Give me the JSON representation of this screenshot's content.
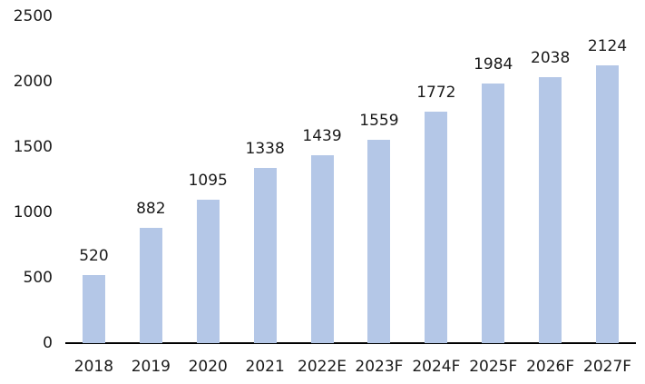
{
  "chart_data": {
    "type": "bar",
    "categories": [
      "2018",
      "2019",
      "2020",
      "2021",
      "2022E",
      "2023F",
      "2024F",
      "2025F",
      "2026F",
      "2027F"
    ],
    "values": [
      520,
      882,
      1095,
      1338,
      1439,
      1559,
      1772,
      1984,
      2038,
      2124
    ],
    "title": "",
    "xlabel": "",
    "ylabel": "",
    "ylim": [
      0,
      2500
    ],
    "y_ticks": [
      0,
      500,
      1000,
      1500,
      2000,
      2500
    ],
    "grid": false,
    "legend_position": "none",
    "value_labels_shown": true,
    "colors": {
      "bar_fill": "#b4c7e7",
      "axis_line": "#000000",
      "label_text": "#1a1a1a",
      "background": "#ffffff"
    }
  }
}
